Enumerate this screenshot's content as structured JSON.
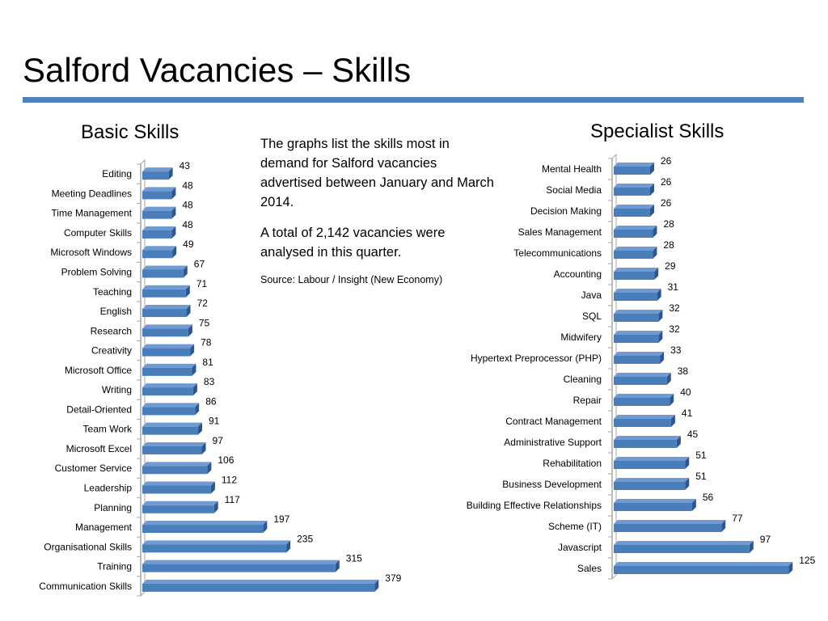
{
  "slide": {
    "title": "Salford Vacancies – Skills"
  },
  "intro": {
    "paragraph1": "The graphs list the skills most in demand for Salford vacancies advertised between January and March 2014.",
    "paragraph2": "A total of 2,142 vacancies were analysed in this quarter.",
    "source": "Source: Labour / Insight (New Economy)"
  },
  "colors": {
    "bar": "#4a7ebb",
    "bar_top": "#6f9bd3",
    "bar_side": "#2c5592",
    "axis": "#a6a6a6",
    "title_rule": "#4f81bd"
  },
  "chart_data": [
    {
      "type": "bar",
      "orientation": "horizontal",
      "style": "3d",
      "title": "Basic Skills",
      "categories": [
        "Editing",
        "Meeting Deadlines",
        "Time Management",
        "Computer Skills",
        "Microsoft Windows",
        "Problem Solving",
        "Teaching",
        "English",
        "Research",
        "Creativity",
        "Microsoft Office",
        "Writing",
        "Detail-Oriented",
        "Team Work",
        "Microsoft Excel",
        "Customer Service",
        "Leadership",
        "Planning",
        "Management",
        "Organisational Skills",
        "Training",
        "Communication Skills"
      ],
      "values": [
        43,
        48,
        48,
        48,
        49,
        67,
        71,
        72,
        75,
        78,
        81,
        83,
        86,
        91,
        97,
        106,
        112,
        117,
        197,
        235,
        315,
        379
      ],
      "xlim": [
        0,
        400
      ],
      "grid": false,
      "data_labels": true
    },
    {
      "type": "bar",
      "orientation": "horizontal",
      "style": "3d",
      "title": "Specialist Skills",
      "categories": [
        "Mental Health",
        "Social Media",
        "Decision Making",
        "Sales Management",
        "Telecommunications",
        "Accounting",
        "Java",
        "SQL",
        "Midwifery",
        "Hypertext Preprocessor (PHP)",
        "Cleaning",
        "Repair",
        "Contract Management",
        "Administrative Support",
        "Rehabilitation",
        "Business Development",
        "Building Effective Relationships",
        "Scheme (IT)",
        "Javascript",
        "Sales"
      ],
      "values": [
        26,
        26,
        26,
        28,
        28,
        29,
        31,
        32,
        32,
        33,
        38,
        40,
        41,
        45,
        51,
        51,
        56,
        77,
        97,
        125
      ],
      "xlim": [
        0,
        130
      ],
      "grid": false,
      "data_labels": true
    }
  ]
}
